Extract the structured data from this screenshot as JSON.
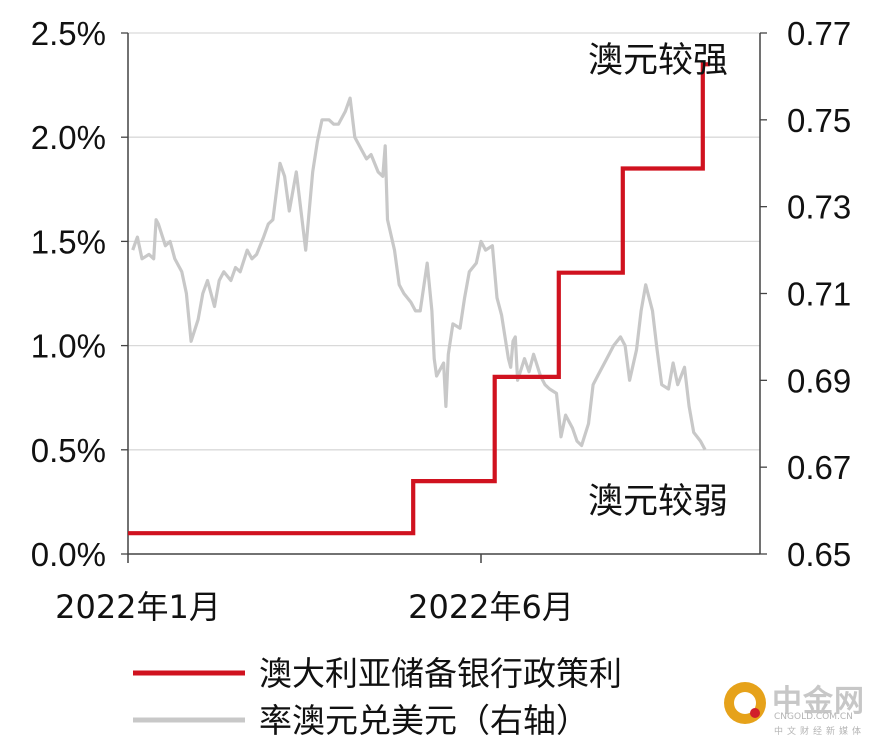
{
  "chart_data": {
    "type": "line",
    "xlabel": "",
    "ylabel": "",
    "x_tick_labels": [
      "2022年1月",
      "2022年6月"
    ],
    "y_left": {
      "range": [
        0.0,
        2.5
      ],
      "ticks": [
        "0.0%",
        "0.5%",
        "1.0%",
        "1.5%",
        "2.0%",
        "2.5%"
      ]
    },
    "y_right": {
      "range": [
        0.65,
        0.77
      ],
      "ticks": [
        "0.65",
        "0.67",
        "0.69",
        "0.71",
        "0.73",
        "0.75",
        "0.77"
      ]
    },
    "grid": "horizontal",
    "legend_position": "bottom",
    "annotations": {
      "strong": "澳元较强",
      "weak": "澳元较弱"
    },
    "series": [
      {
        "name": "澳大利亚储备银行政策利",
        "axis": "left",
        "color": "#d0121f",
        "style": "step",
        "points": [
          [
            "2022-01-01",
            0.1
          ],
          [
            "2022-05-03",
            0.1
          ],
          [
            "2022-05-03",
            0.35
          ],
          [
            "2022-06-07",
            0.35
          ],
          [
            "2022-06-07",
            0.85
          ],
          [
            "2022-07-05",
            0.85
          ],
          [
            "2022-07-05",
            1.35
          ],
          [
            "2022-08-02",
            1.35
          ],
          [
            "2022-08-02",
            1.85
          ],
          [
            "2022-09-06",
            1.85
          ],
          [
            "2022-09-06",
            2.35
          ],
          [
            "2022-09-09",
            2.35
          ]
        ]
      },
      {
        "name": "率澳元兑美元（右轴）",
        "axis": "right",
        "color": "#c8c8c8",
        "style": "line",
        "points": [
          [
            "2022-01-03",
            0.72
          ],
          [
            "2022-01-05",
            0.723
          ],
          [
            "2022-01-07",
            0.718
          ],
          [
            "2022-01-10",
            0.719
          ],
          [
            "2022-01-12",
            0.718
          ],
          [
            "2022-01-13",
            0.727
          ],
          [
            "2022-01-14",
            0.726
          ],
          [
            "2022-01-17",
            0.721
          ],
          [
            "2022-01-19",
            0.722
          ],
          [
            "2022-01-21",
            0.718
          ],
          [
            "2022-01-24",
            0.715
          ],
          [
            "2022-01-26",
            0.71
          ],
          [
            "2022-01-28",
            0.699
          ],
          [
            "2022-01-31",
            0.704
          ],
          [
            "2022-02-02",
            0.71
          ],
          [
            "2022-02-04",
            0.713
          ],
          [
            "2022-02-07",
            0.707
          ],
          [
            "2022-02-09",
            0.713
          ],
          [
            "2022-02-11",
            0.715
          ],
          [
            "2022-02-14",
            0.713
          ],
          [
            "2022-02-16",
            0.716
          ],
          [
            "2022-02-18",
            0.715
          ],
          [
            "2022-02-21",
            0.72
          ],
          [
            "2022-02-23",
            0.718
          ],
          [
            "2022-02-25",
            0.719
          ],
          [
            "2022-02-28",
            0.723
          ],
          [
            "2022-03-02",
            0.726
          ],
          [
            "2022-03-04",
            0.727
          ],
          [
            "2022-03-07",
            0.74
          ],
          [
            "2022-03-09",
            0.737
          ],
          [
            "2022-03-11",
            0.729
          ],
          [
            "2022-03-14",
            0.738
          ],
          [
            "2022-03-16",
            0.729
          ],
          [
            "2022-03-18",
            0.72
          ],
          [
            "2022-03-21",
            0.738
          ],
          [
            "2022-03-23",
            0.745
          ],
          [
            "2022-03-25",
            0.75
          ],
          [
            "2022-03-28",
            0.75
          ],
          [
            "2022-03-30",
            0.749
          ],
          [
            "2022-04-01",
            0.749
          ],
          [
            "2022-04-04",
            0.752
          ],
          [
            "2022-04-06",
            0.755
          ],
          [
            "2022-04-08",
            0.746
          ],
          [
            "2022-04-11",
            0.743
          ],
          [
            "2022-04-13",
            0.741
          ],
          [
            "2022-04-15",
            0.742
          ],
          [
            "2022-04-18",
            0.738
          ],
          [
            "2022-04-20",
            0.737
          ],
          [
            "2022-04-21",
            0.744
          ],
          [
            "2022-04-22",
            0.727
          ],
          [
            "2022-04-25",
            0.72
          ],
          [
            "2022-04-27",
            0.712
          ],
          [
            "2022-04-29",
            0.71
          ],
          [
            "2022-05-02",
            0.708
          ],
          [
            "2022-05-04",
            0.706
          ],
          [
            "2022-05-06",
            0.706
          ],
          [
            "2022-05-09",
            0.717
          ],
          [
            "2022-05-11",
            0.706
          ],
          [
            "2022-05-12",
            0.695
          ],
          [
            "2022-05-13",
            0.691
          ],
          [
            "2022-05-16",
            0.694
          ],
          [
            "2022-05-17",
            0.684
          ],
          [
            "2022-05-18",
            0.696
          ],
          [
            "2022-05-20",
            0.703
          ],
          [
            "2022-05-23",
            0.702
          ],
          [
            "2022-05-25",
            0.709
          ],
          [
            "2022-05-27",
            0.715
          ],
          [
            "2022-05-30",
            0.717
          ],
          [
            "2022-06-01",
            0.722
          ],
          [
            "2022-06-03",
            0.72
          ],
          [
            "2022-06-06",
            0.721
          ],
          [
            "2022-06-08",
            0.709
          ],
          [
            "2022-06-10",
            0.705
          ],
          [
            "2022-06-13",
            0.695
          ],
          [
            "2022-06-14",
            0.693
          ],
          [
            "2022-06-15",
            0.699
          ],
          [
            "2022-06-16",
            0.7
          ],
          [
            "2022-06-17",
            0.69
          ],
          [
            "2022-06-20",
            0.695
          ],
          [
            "2022-06-22",
            0.692
          ],
          [
            "2022-06-24",
            0.696
          ],
          [
            "2022-06-27",
            0.691
          ],
          [
            "2022-06-29",
            0.689
          ],
          [
            "2022-07-01",
            0.688
          ],
          [
            "2022-07-04",
            0.687
          ],
          [
            "2022-07-06",
            0.677
          ],
          [
            "2022-07-08",
            0.682
          ],
          [
            "2022-07-11",
            0.679
          ],
          [
            "2022-07-13",
            0.676
          ],
          [
            "2022-07-15",
            0.675
          ],
          [
            "2022-07-18",
            0.68
          ],
          [
            "2022-07-20",
            0.689
          ],
          [
            "2022-07-22",
            0.691
          ],
          [
            "2022-07-25",
            0.694
          ],
          [
            "2022-07-27",
            0.696
          ],
          [
            "2022-07-29",
            0.698
          ],
          [
            "2022-08-01",
            0.7
          ],
          [
            "2022-08-03",
            0.698
          ],
          [
            "2022-08-05",
            0.69
          ],
          [
            "2022-08-08",
            0.697
          ],
          [
            "2022-08-10",
            0.706
          ],
          [
            "2022-08-12",
            0.712
          ],
          [
            "2022-08-15",
            0.706
          ],
          [
            "2022-08-17",
            0.697
          ],
          [
            "2022-08-19",
            0.689
          ],
          [
            "2022-08-22",
            0.688
          ],
          [
            "2022-08-24",
            0.694
          ],
          [
            "2022-08-26",
            0.689
          ],
          [
            "2022-08-29",
            0.693
          ],
          [
            "2022-08-31",
            0.684
          ],
          [
            "2022-09-02",
            0.678
          ],
          [
            "2022-09-05",
            0.676
          ],
          [
            "2022-09-07",
            0.674
          ]
        ]
      }
    ]
  },
  "watermark": {
    "name": "中金网",
    "domain": "CNGOLD.COM.CN",
    "tagline": "中文财经新媒体"
  }
}
